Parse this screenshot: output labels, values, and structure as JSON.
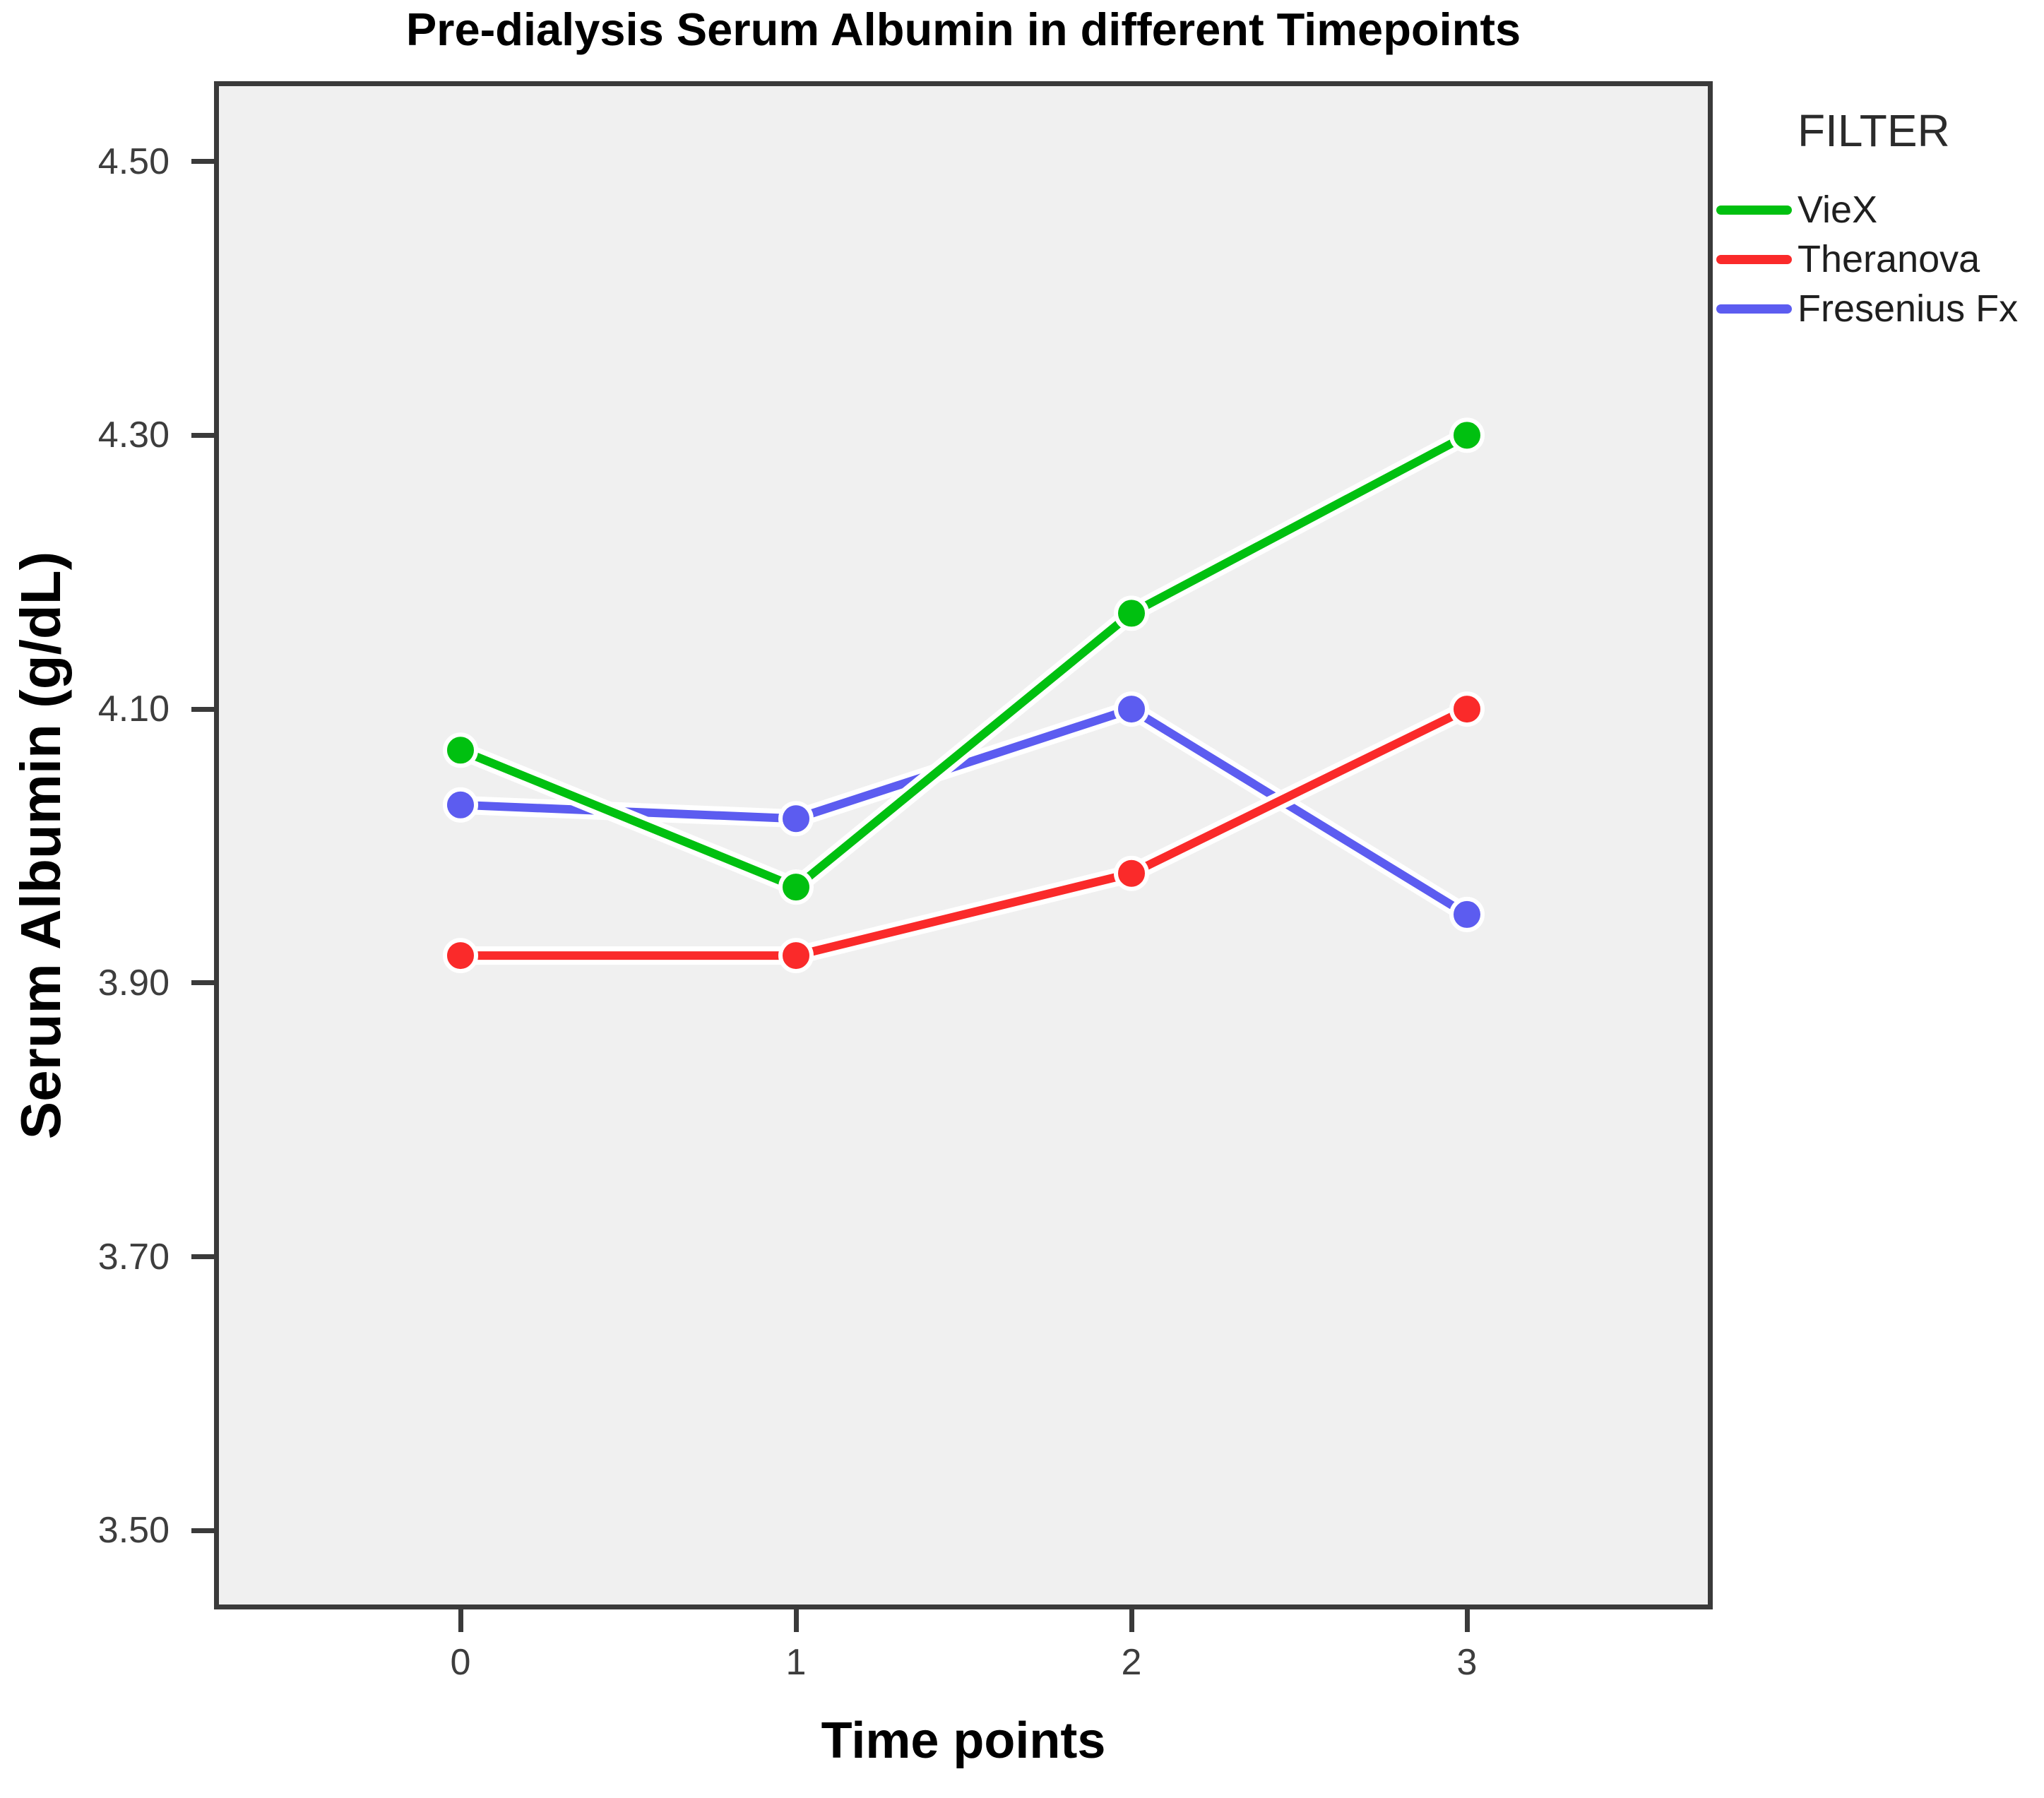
{
  "chart_data": {
    "type": "line",
    "title": "Pre-dialysis Serum Albumin in different Timepoints",
    "xlabel": "Time points",
    "ylabel": "Serum Albumin (g/dL)",
    "legend_title": "FILTER",
    "legend_position": "outside-top-right",
    "grid": false,
    "plot_background": "#F0F0F0",
    "axis_color": "#3A3A3A",
    "x": [
      0,
      1,
      2,
      3
    ],
    "xtick_labels": [
      "0",
      "1",
      "2",
      "3"
    ],
    "yticks": [
      "4.50",
      "4.30",
      "4.10",
      "3.90",
      "3.70",
      "3.50"
    ],
    "ylim": [
      3.446,
      4.555
    ],
    "series": [
      {
        "name": "VieX",
        "color": "#00C010",
        "values": [
          4.07,
          3.97,
          4.17,
          4.3
        ]
      },
      {
        "name": "Theranova",
        "color": "#FA2A2A",
        "values": [
          3.92,
          3.92,
          3.98,
          4.1
        ]
      },
      {
        "name": "Fresenius Fx",
        "color": "#5C5CF0",
        "values": [
          4.03,
          4.02,
          4.1,
          3.95
        ]
      }
    ]
  }
}
